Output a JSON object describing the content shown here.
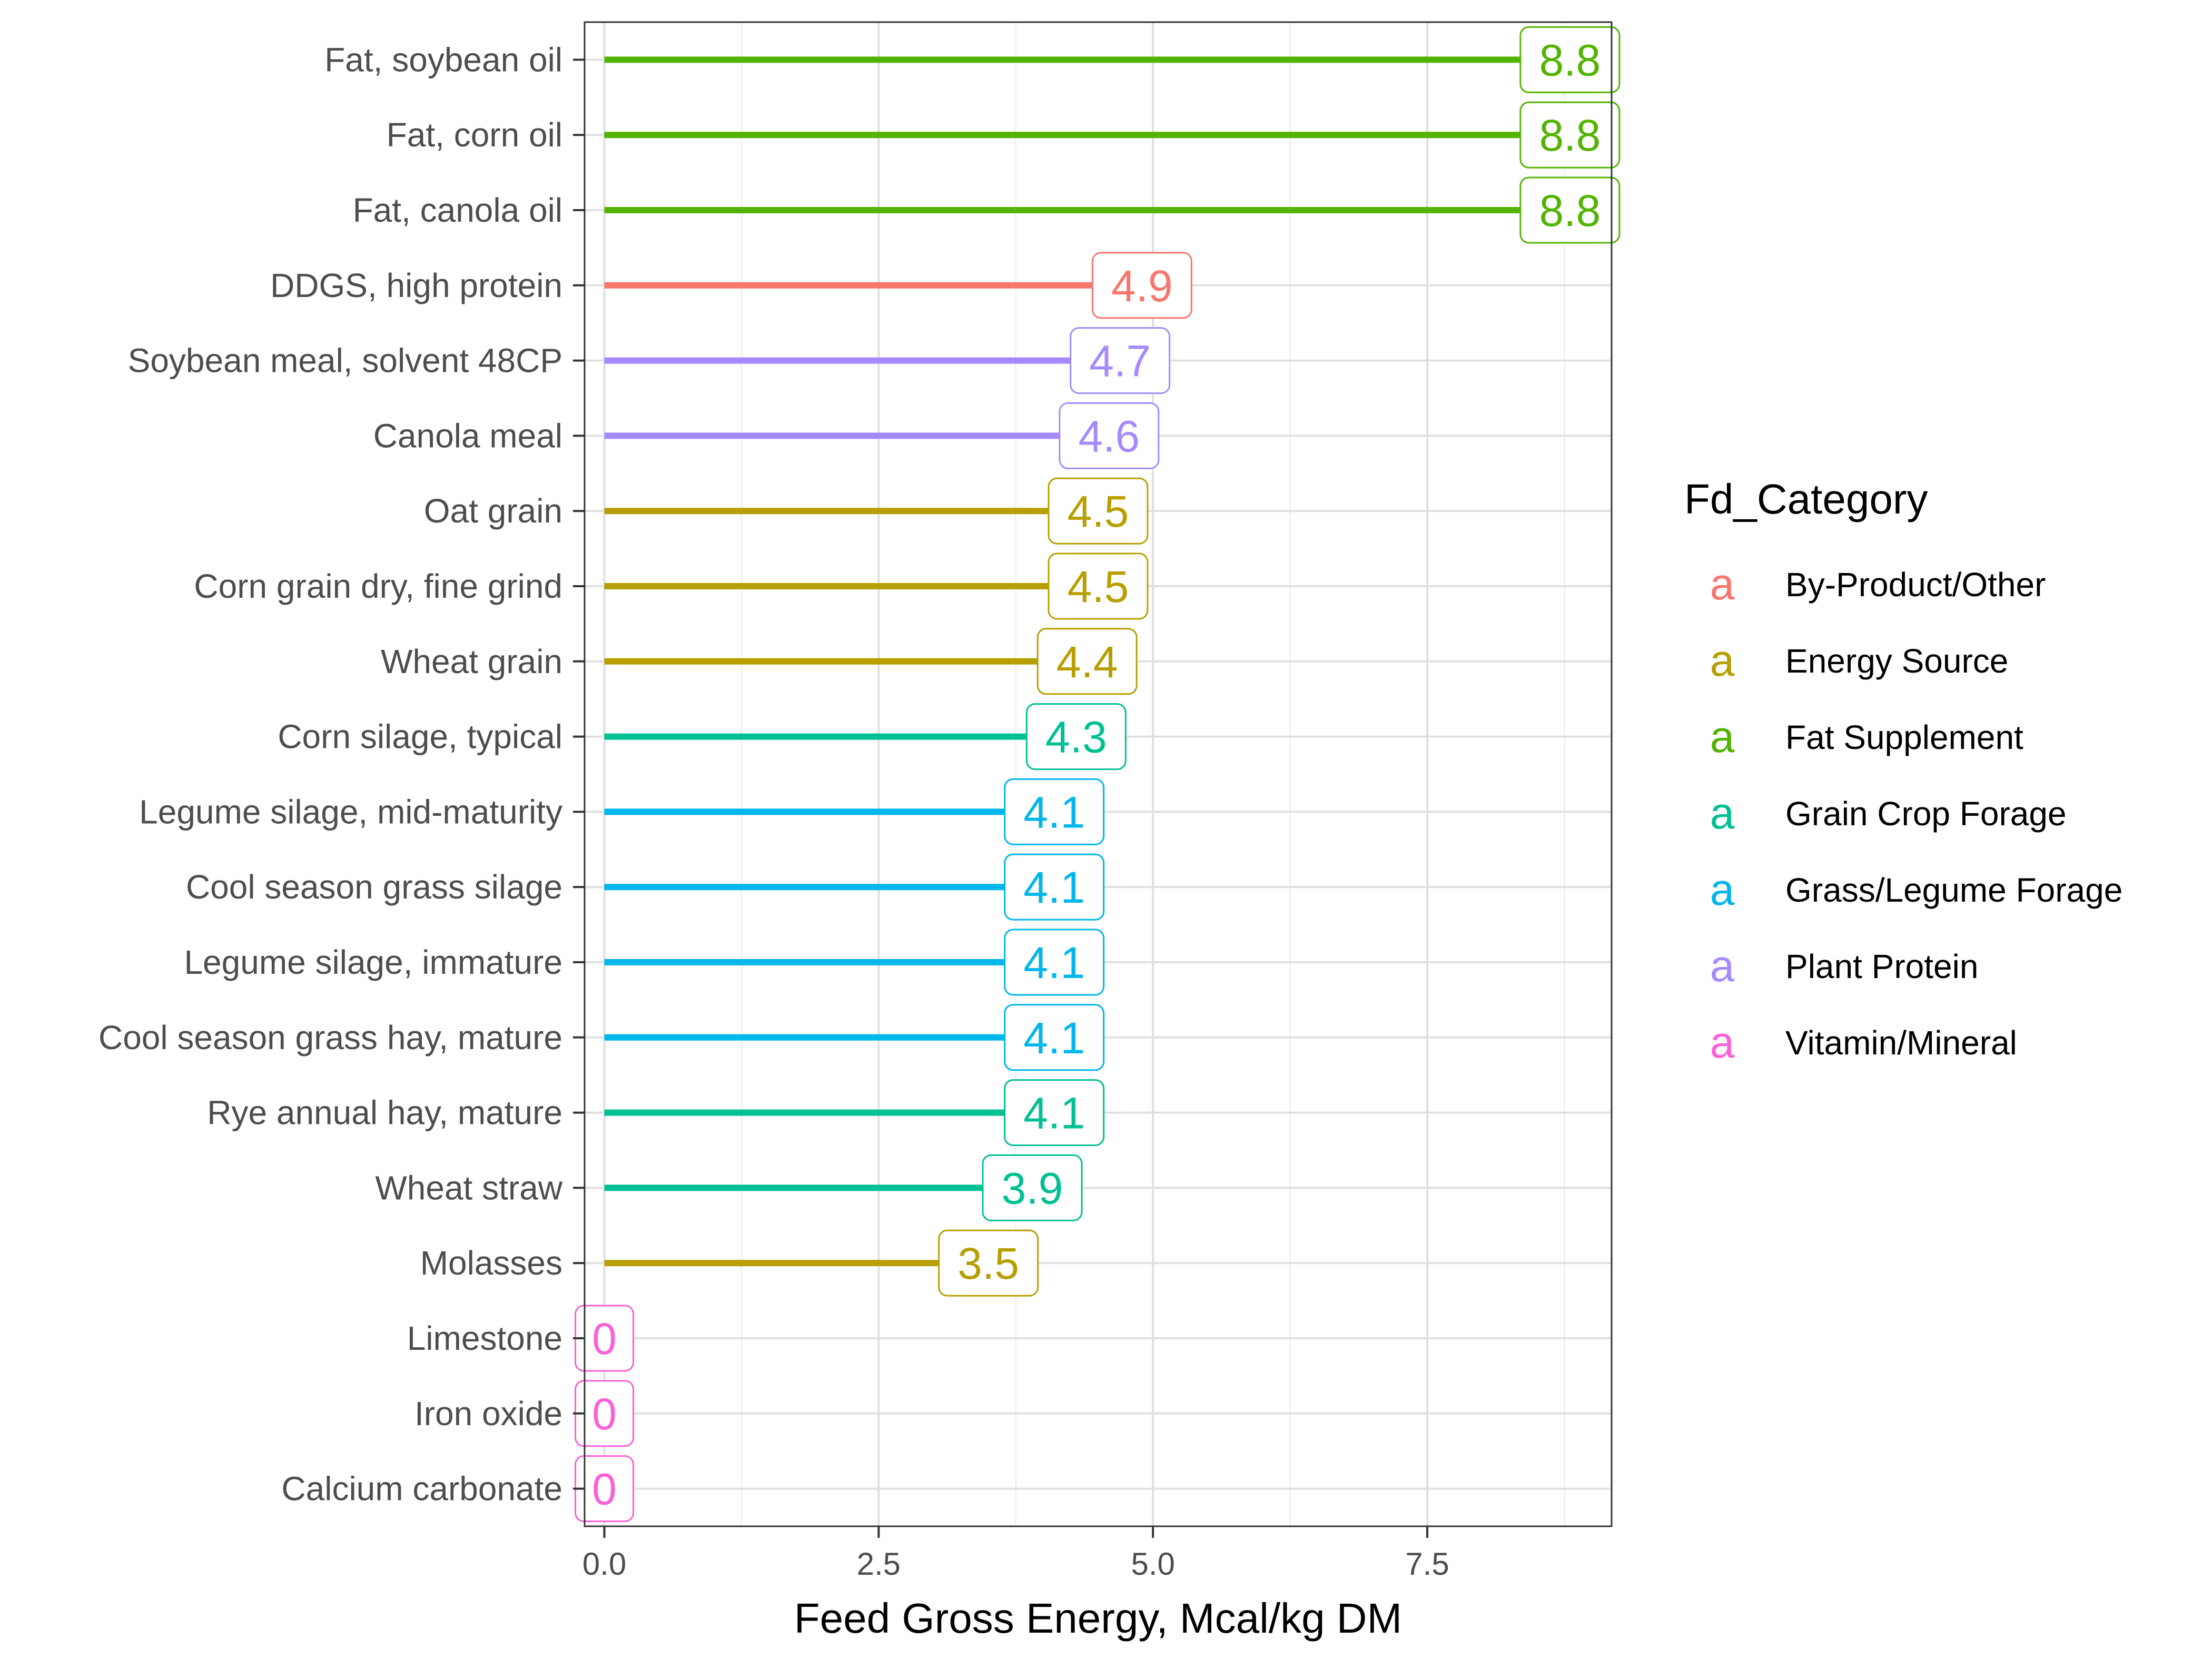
{
  "chart_data": {
    "type": "lollipop",
    "title": "",
    "xlabel": "Feed Gross Energy, Mcal/kg DM",
    "ylabel": "",
    "xlim": [
      -0.18,
      9.18
    ],
    "xticks": [
      0.0,
      2.5,
      5.0,
      7.5
    ],
    "xtick_labels": [
      "0.0",
      "2.5",
      "5.0",
      "7.5"
    ],
    "grid": true,
    "legend": {
      "title": "Fd_Category",
      "placement": "right",
      "key_glyph": "a",
      "entries": [
        {
          "name": "By-Product/Other",
          "color": "#F8766D"
        },
        {
          "name": "Energy Source",
          "color": "#B79F00"
        },
        {
          "name": "Fat Supplement",
          "color": "#53B400"
        },
        {
          "name": "Grain Crop Forage",
          "color": "#00C094"
        },
        {
          "name": "Grass/Legume Forage",
          "color": "#00B6EB"
        },
        {
          "name": "Plant Protein",
          "color": "#A58AFF"
        },
        {
          "name": "Vitamin/Mineral",
          "color": "#FB61D7"
        }
      ]
    },
    "points": [
      {
        "feed": "Fat, soybean oil",
        "value": 8.8,
        "label": "8.8",
        "category": "Fat Supplement"
      },
      {
        "feed": "Fat, corn oil",
        "value": 8.8,
        "label": "8.8",
        "category": "Fat Supplement"
      },
      {
        "feed": "Fat, canola oil",
        "value": 8.8,
        "label": "8.8",
        "category": "Fat Supplement"
      },
      {
        "feed": "DDGS, high protein",
        "value": 4.9,
        "label": "4.9",
        "category": "By-Product/Other"
      },
      {
        "feed": "Soybean meal, solvent 48CP",
        "value": 4.7,
        "label": "4.7",
        "category": "Plant Protein"
      },
      {
        "feed": "Canola meal",
        "value": 4.6,
        "label": "4.6",
        "category": "Plant Protein"
      },
      {
        "feed": "Oat grain",
        "value": 4.5,
        "label": "4.5",
        "category": "Energy Source"
      },
      {
        "feed": "Corn grain dry, fine grind",
        "value": 4.5,
        "label": "4.5",
        "category": "Energy Source"
      },
      {
        "feed": "Wheat grain",
        "value": 4.4,
        "label": "4.4",
        "category": "Energy Source"
      },
      {
        "feed": "Corn silage, typical",
        "value": 4.3,
        "label": "4.3",
        "category": "Grain Crop Forage"
      },
      {
        "feed": "Legume silage, mid-maturity",
        "value": 4.1,
        "label": "4.1",
        "category": "Grass/Legume Forage"
      },
      {
        "feed": "Cool season grass silage",
        "value": 4.1,
        "label": "4.1",
        "category": "Grass/Legume Forage"
      },
      {
        "feed": "Legume silage, immature",
        "value": 4.1,
        "label": "4.1",
        "category": "Grass/Legume Forage"
      },
      {
        "feed": "Cool season grass hay, mature",
        "value": 4.1,
        "label": "4.1",
        "category": "Grass/Legume Forage"
      },
      {
        "feed": "Rye annual hay, mature",
        "value": 4.1,
        "label": "4.1",
        "category": "Grain Crop Forage"
      },
      {
        "feed": "Wheat straw",
        "value": 3.9,
        "label": "3.9",
        "category": "Grain Crop Forage"
      },
      {
        "feed": "Molasses",
        "value": 3.5,
        "label": "3.5",
        "category": "Energy Source"
      },
      {
        "feed": "Limestone",
        "value": 0,
        "label": "0",
        "category": "Vitamin/Mineral"
      },
      {
        "feed": "Iron oxide",
        "value": 0,
        "label": "0",
        "category": "Vitamin/Mineral"
      },
      {
        "feed": "Calcium carbonate",
        "value": 0,
        "label": "0",
        "category": "Vitamin/Mineral"
      }
    ]
  }
}
